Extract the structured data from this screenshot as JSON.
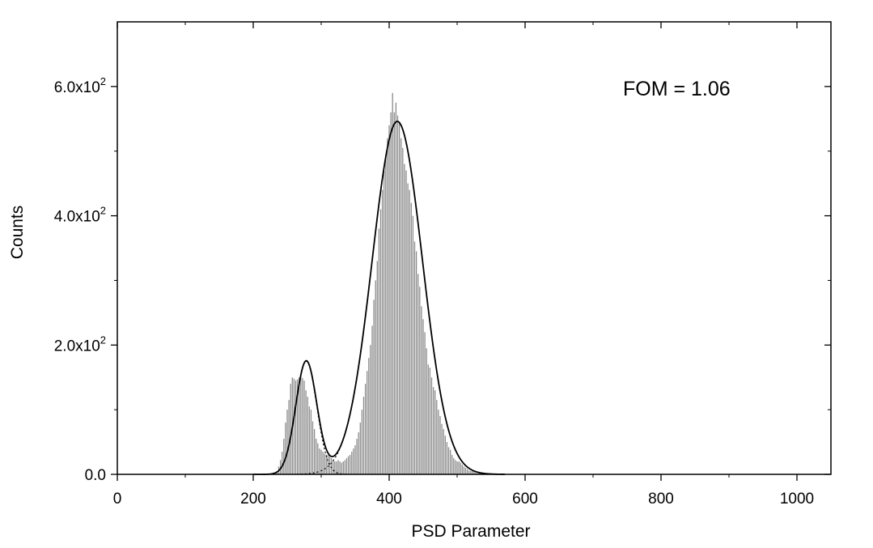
{
  "chart_data": {
    "type": "bar",
    "xlabel": "PSD Parameter",
    "ylabel": "Counts",
    "annotation": "FOM = 1.06",
    "xlim": [
      0,
      1050
    ],
    "ylim": [
      0,
      700
    ],
    "x_ticks": [
      {
        "value": 0,
        "label": "0"
      },
      {
        "value": 200,
        "label": "200"
      },
      {
        "value": 400,
        "label": "400"
      },
      {
        "value": 600,
        "label": "600"
      },
      {
        "value": 800,
        "label": "800"
      },
      {
        "value": 1000,
        "label": "1000"
      }
    ],
    "y_ticks": [
      {
        "value": 0,
        "mantissa": "0.0",
        "exponent": ""
      },
      {
        "value": 200,
        "mantissa": "2.0x10",
        "exponent": "2"
      },
      {
        "value": 400,
        "mantissa": "4.0x10",
        "exponent": "2"
      },
      {
        "value": 600,
        "mantissa": "6.0x10",
        "exponent": "2"
      }
    ],
    "grid": false,
    "histogram": {
      "bin_width": 2.5,
      "x_start": 235,
      "counts": [
        5,
        12,
        22,
        35,
        55,
        80,
        100,
        115,
        140,
        150,
        148,
        145,
        147,
        150,
        152,
        149,
        145,
        130,
        120,
        105,
        100,
        82,
        70,
        55,
        48,
        40,
        38,
        35,
        32,
        30,
        30,
        28,
        25,
        22,
        20,
        20,
        22,
        20,
        18,
        20,
        22,
        25,
        28,
        30,
        35,
        40,
        45,
        55,
        65,
        80,
        100,
        120,
        140,
        160,
        180,
        200,
        230,
        270,
        300,
        330,
        380,
        410,
        440,
        470,
        495,
        520,
        540,
        560,
        590,
        560,
        575,
        555,
        545,
        520,
        505,
        480,
        470,
        450,
        440,
        420,
        400,
        360,
        345,
        310,
        290,
        260,
        240,
        220,
        195,
        170,
        165,
        150,
        135,
        130,
        115,
        100,
        90,
        78,
        70,
        60,
        50,
        42,
        38,
        30,
        25,
        22,
        20,
        20,
        18,
        15,
        12,
        10,
        8,
        6,
        5,
        5,
        4,
        3,
        2,
        2,
        1,
        1,
        1,
        1,
        1,
        1,
        1,
        1,
        1,
        1,
        1,
        1,
        1,
        1,
        1
      ]
    },
    "fits": [
      {
        "amplitude": 175,
        "mean": 278,
        "sigma": 15.5
      },
      {
        "amplitude": 546,
        "mean": 412,
        "sigma": 37
      }
    ]
  }
}
